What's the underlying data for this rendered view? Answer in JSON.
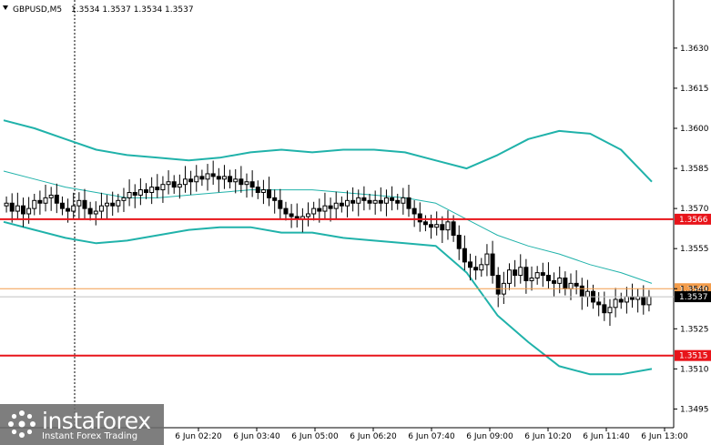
{
  "header": {
    "symbol": "GBPUSD,M5",
    "ohlc": "1.3534 1.3537 1.3534 1.3537"
  },
  "logo": {
    "name": "instaforex",
    "tagline": "Instant Forex Trading"
  },
  "colors": {
    "background": "#ffffff",
    "candle": "#000000",
    "bollinger": "#20b2aa",
    "level_red": "#e8141a",
    "level_orange": "#f39c4a",
    "current_price": "#c0c0c0"
  },
  "chart_data": {
    "type": "candlestick",
    "symbol": "GBPUSD",
    "timeframe": "M5",
    "ylim": [
      1.3488,
      1.3648
    ],
    "y_ticks": [
      "1.3630",
      "1.3615",
      "1.3600",
      "1.3585",
      "1.3570",
      "1.3555",
      "1.3540",
      "1.3525",
      "1.3510",
      "1.3495"
    ],
    "x_ticks": [
      "6 Jun 02:20",
      "6 Jun 03:40",
      "6 Jun 05:00",
      "6 Jun 06:20",
      "6 Jun 07:40",
      "6 Jun 09:00",
      "6 Jun 10:20",
      "6 Jun 11:40",
      "6 Jun 13:00"
    ],
    "levels": [
      {
        "price": 1.3566,
        "label": "1.3566",
        "color": "#e8141a"
      },
      {
        "price": 1.354,
        "label": "1.3540",
        "color": "#f39c4a"
      },
      {
        "price": 1.3515,
        "label": "1.3515",
        "color": "#e8141a"
      }
    ],
    "current_price": {
      "price": 1.3537,
      "label": "1.3537"
    },
    "close": [
      1.3572,
      1.3569,
      1.3571,
      1.3568,
      1.357,
      1.3573,
      1.3572,
      1.3574,
      1.3575,
      1.3572,
      1.357,
      1.3569,
      1.3571,
      1.3573,
      1.357,
      1.3568,
      1.3569,
      1.3571,
      1.3572,
      1.3571,
      1.3573,
      1.3574,
      1.3576,
      1.3575,
      1.3577,
      1.3576,
      1.3578,
      1.3577,
      1.3579,
      1.358,
      1.3578,
      1.3579,
      1.3581,
      1.358,
      1.3582,
      1.3581,
      1.3583,
      1.3582,
      1.3581,
      1.3582,
      1.358,
      1.3581,
      1.3579,
      1.358,
      1.3578,
      1.3576,
      1.3577,
      1.3574,
      1.3573,
      1.357,
      1.3568,
      1.3567,
      1.3566,
      1.3567,
      1.3568,
      1.357,
      1.3569,
      1.3571,
      1.357,
      1.3572,
      1.3571,
      1.3573,
      1.3572,
      1.3574,
      1.3573,
      1.3572,
      1.3573,
      1.3572,
      1.3574,
      1.3573,
      1.3572,
      1.3574,
      1.357,
      1.3568,
      1.3565,
      1.3564,
      1.3563,
      1.3564,
      1.3562,
      1.3565,
      1.356,
      1.3555,
      1.355,
      1.3548,
      1.3547,
      1.3549,
      1.3553,
      1.3545,
      1.3538,
      1.3542,
      1.3547,
      1.3545,
      1.3548,
      1.3543,
      1.3544,
      1.3546,
      1.3545,
      1.3543,
      1.3542,
      1.3544,
      1.354,
      1.3542,
      1.3541,
      1.3537,
      1.3539,
      1.3535,
      1.3534,
      1.3531,
      1.3533,
      1.3536,
      1.3535,
      1.3537,
      1.3536,
      1.3537,
      1.3534,
      1.3537
    ],
    "bb_upper": [
      1.3603,
      1.36,
      1.3596,
      1.3592,
      1.359,
      1.3589,
      1.3588,
      1.3589,
      1.3591,
      1.3592,
      1.3591,
      1.3592,
      1.3592,
      1.3591,
      1.3588,
      1.3585,
      1.359,
      1.3596,
      1.3599,
      1.3598,
      1.3592,
      1.358
    ],
    "bb_middle": [
      1.3584,
      1.3581,
      1.3578,
      1.3576,
      1.3574,
      1.3574,
      1.3575,
      1.3576,
      1.3577,
      1.3577,
      1.3577,
      1.3576,
      1.3575,
      1.3574,
      1.3572,
      1.3566,
      1.356,
      1.3556,
      1.3553,
      1.3549,
      1.3546,
      1.3542
    ],
    "bb_lower": [
      1.3565,
      1.3562,
      1.3559,
      1.3557,
      1.3558,
      1.356,
      1.3562,
      1.3563,
      1.3563,
      1.3561,
      1.3561,
      1.3559,
      1.3558,
      1.3557,
      1.3556,
      1.3546,
      1.353,
      1.352,
      1.3511,
      1.3508,
      1.3508,
      1.351
    ]
  }
}
